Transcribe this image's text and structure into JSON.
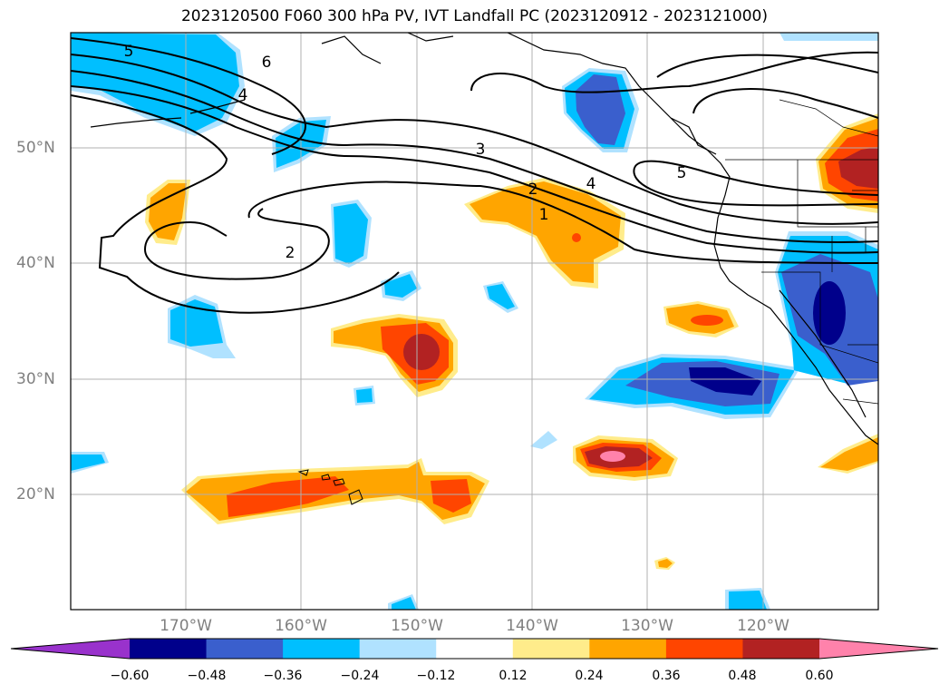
{
  "title": "2023120500 F060 300 hPa PV, IVT Landfall PC (2023120912 - 2023121000)",
  "longitude_labels": [
    "170°W",
    "160°W",
    "150°W",
    "140°W",
    "130°W",
    "120°W"
  ],
  "latitude_labels": [
    "50°N",
    "40°N",
    "30°N",
    "20°N"
  ],
  "contour_labels": [
    "5",
    "6",
    "4",
    "3",
    "2",
    "4",
    "1",
    "5",
    "2"
  ],
  "colorbar": {
    "tick_labels": [
      "−0.60",
      "−0.48",
      "−0.36",
      "−0.24",
      "−0.12",
      "0.12",
      "0.24",
      "0.36",
      "0.48",
      "0.60"
    ],
    "colors": [
      "#9932cc",
      "#00008b",
      "#3a5fcd",
      "#00bfff",
      "#b0e2ff",
      "#ffffff",
      "#ffec8b",
      "#ffa500",
      "#ff4500",
      "#b22222",
      "#ff82ab"
    ]
  }
}
